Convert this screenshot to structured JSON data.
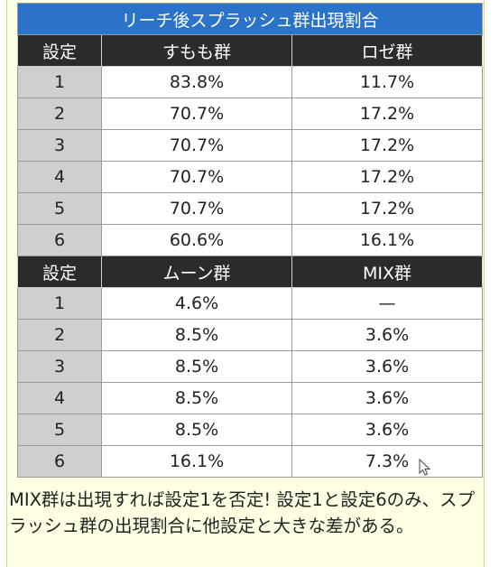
{
  "table": {
    "title": "リーチ後スプラッシュ群出現割合",
    "section1": {
      "headers": [
        "設定",
        "すもも群",
        "ロゼ群"
      ],
      "rows": [
        [
          "1",
          "83.8%",
          "11.7%"
        ],
        [
          "2",
          "70.7%",
          "17.2%"
        ],
        [
          "3",
          "70.7%",
          "17.2%"
        ],
        [
          "4",
          "70.7%",
          "17.2%"
        ],
        [
          "5",
          "70.7%",
          "17.2%"
        ],
        [
          "6",
          "60.6%",
          "16.1%"
        ]
      ]
    },
    "section2": {
      "headers": [
        "設定",
        "ムーン群",
        "MIX群"
      ],
      "rows": [
        [
          "1",
          "4.6%",
          "—"
        ],
        [
          "2",
          "8.5%",
          "3.6%"
        ],
        [
          "3",
          "8.5%",
          "3.6%"
        ],
        [
          "4",
          "8.5%",
          "3.6%"
        ],
        [
          "5",
          "8.5%",
          "3.6%"
        ],
        [
          "6",
          "16.1%",
          "7.3%"
        ]
      ]
    }
  },
  "footnote": "MIX群は出現すれば設定1を否定! 設定1と設定6のみ、スプラッシュ群の出現割合に他設定と大きな差がある。",
  "colors": {
    "title_bg": "#2b73c8",
    "header_bg": "#2b2b2b",
    "setting_bg": "#cfcfcf",
    "page_bg": "#ffffe4"
  },
  "icons": {
    "cursor": "mouse-pointer-icon"
  }
}
